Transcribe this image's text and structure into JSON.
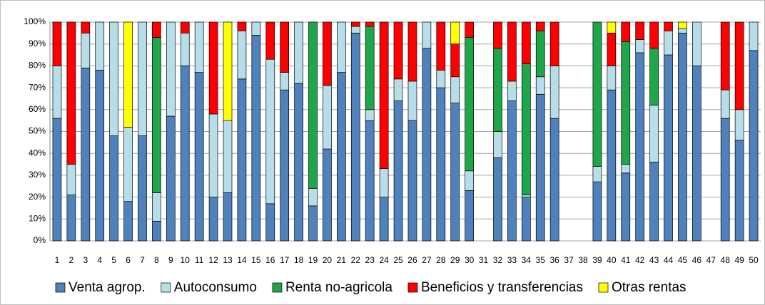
{
  "chart_data": {
    "type": "stacked_bar",
    "categories": [
      "1",
      "2",
      "3",
      "4",
      "5",
      "6",
      "7",
      "8",
      "9",
      "10",
      "11",
      "12",
      "13",
      "14",
      "15",
      "16",
      "17",
      "18",
      "19",
      "20",
      "21",
      "22",
      "23",
      "24",
      "25",
      "26",
      "27",
      "28",
      "29",
      "30",
      "31",
      "32",
      "33",
      "34",
      "35",
      "36",
      "37",
      "38",
      "39",
      "40",
      "41",
      "42",
      "43",
      "44",
      "45",
      "46",
      "47",
      "48",
      "49",
      "50"
    ],
    "series": [
      {
        "name": "Venta agrop.",
        "color": "#4f81bd",
        "values": [
          56,
          21,
          79,
          78,
          48,
          18,
          48,
          9,
          57,
          80,
          77,
          20,
          22,
          74,
          94,
          17,
          69,
          72,
          16,
          42,
          77,
          95,
          55,
          20,
          64,
          55,
          88,
          70,
          63,
          23,
          null,
          38,
          64,
          20,
          67,
          56,
          null,
          null,
          27,
          69,
          31,
          86,
          36,
          85,
          95,
          80,
          null,
          56,
          46,
          87
        ]
      },
      {
        "name": "Autoconsumo",
        "color": "#b7dee8",
        "values": [
          24,
          14,
          16,
          22,
          52,
          34,
          52,
          13,
          43,
          15,
          23,
          38,
          33,
          22,
          6,
          66,
          8,
          28,
          8,
          29,
          23,
          3,
          5,
          13,
          10,
          18,
          12,
          8,
          12,
          9,
          null,
          12,
          9,
          1,
          8,
          24,
          null,
          null,
          7,
          11,
          4,
          6,
          26,
          11,
          2,
          20,
          null,
          13,
          14,
          13
        ]
      },
      {
        "name": "Renta no-agricola",
        "color": "#1fa64a",
        "values": [
          0,
          0,
          0,
          0,
          0,
          0,
          0,
          71,
          0,
          0,
          0,
          0,
          0,
          0,
          0,
          0,
          0,
          0,
          76,
          0,
          0,
          0,
          38,
          0,
          0,
          0,
          0,
          0,
          0,
          61,
          null,
          38,
          0,
          60,
          21,
          0,
          null,
          null,
          66,
          0,
          56,
          0,
          26,
          0,
          0,
          0,
          null,
          0,
          0,
          0
        ]
      },
      {
        "name": "Beneficios y transferencias",
        "color": "#ff0000",
        "values": [
          20,
          65,
          5,
          0,
          0,
          0,
          0,
          7,
          0,
          5,
          0,
          42,
          0,
          4,
          0,
          17,
          23,
          0,
          0,
          29,
          0,
          2,
          2,
          67,
          26,
          27,
          0,
          22,
          15,
          7,
          null,
          12,
          27,
          19,
          4,
          20,
          null,
          null,
          0,
          15,
          9,
          8,
          12,
          4,
          0,
          0,
          null,
          31,
          40,
          0
        ]
      },
      {
        "name": "Otras rentas",
        "color": "#ffff00",
        "values": [
          0,
          0,
          0,
          0,
          0,
          48,
          0,
          0,
          0,
          0,
          0,
          0,
          45,
          0,
          0,
          0,
          0,
          0,
          0,
          0,
          0,
          0,
          0,
          0,
          0,
          0,
          0,
          0,
          10,
          0,
          null,
          0,
          0,
          0,
          0,
          0,
          null,
          null,
          0,
          5,
          0,
          0,
          0,
          0,
          3,
          0,
          null,
          0,
          0,
          0
        ]
      }
    ],
    "ylim": [
      0,
      100
    ],
    "yticks": [
      {
        "value": 0,
        "label": "0%"
      },
      {
        "value": 10,
        "label": "10%"
      },
      {
        "value": 20,
        "label": "20%"
      },
      {
        "value": 30,
        "label": "30%"
      },
      {
        "value": 40,
        "label": "40%"
      },
      {
        "value": 50,
        "label": "50%"
      },
      {
        "value": 60,
        "label": "60%"
      },
      {
        "value": 70,
        "label": "70%"
      },
      {
        "value": 80,
        "label": "80%"
      },
      {
        "value": 90,
        "label": "90%"
      },
      {
        "value": 100,
        "label": "100%"
      }
    ],
    "grid": true,
    "legend": "bottom"
  }
}
